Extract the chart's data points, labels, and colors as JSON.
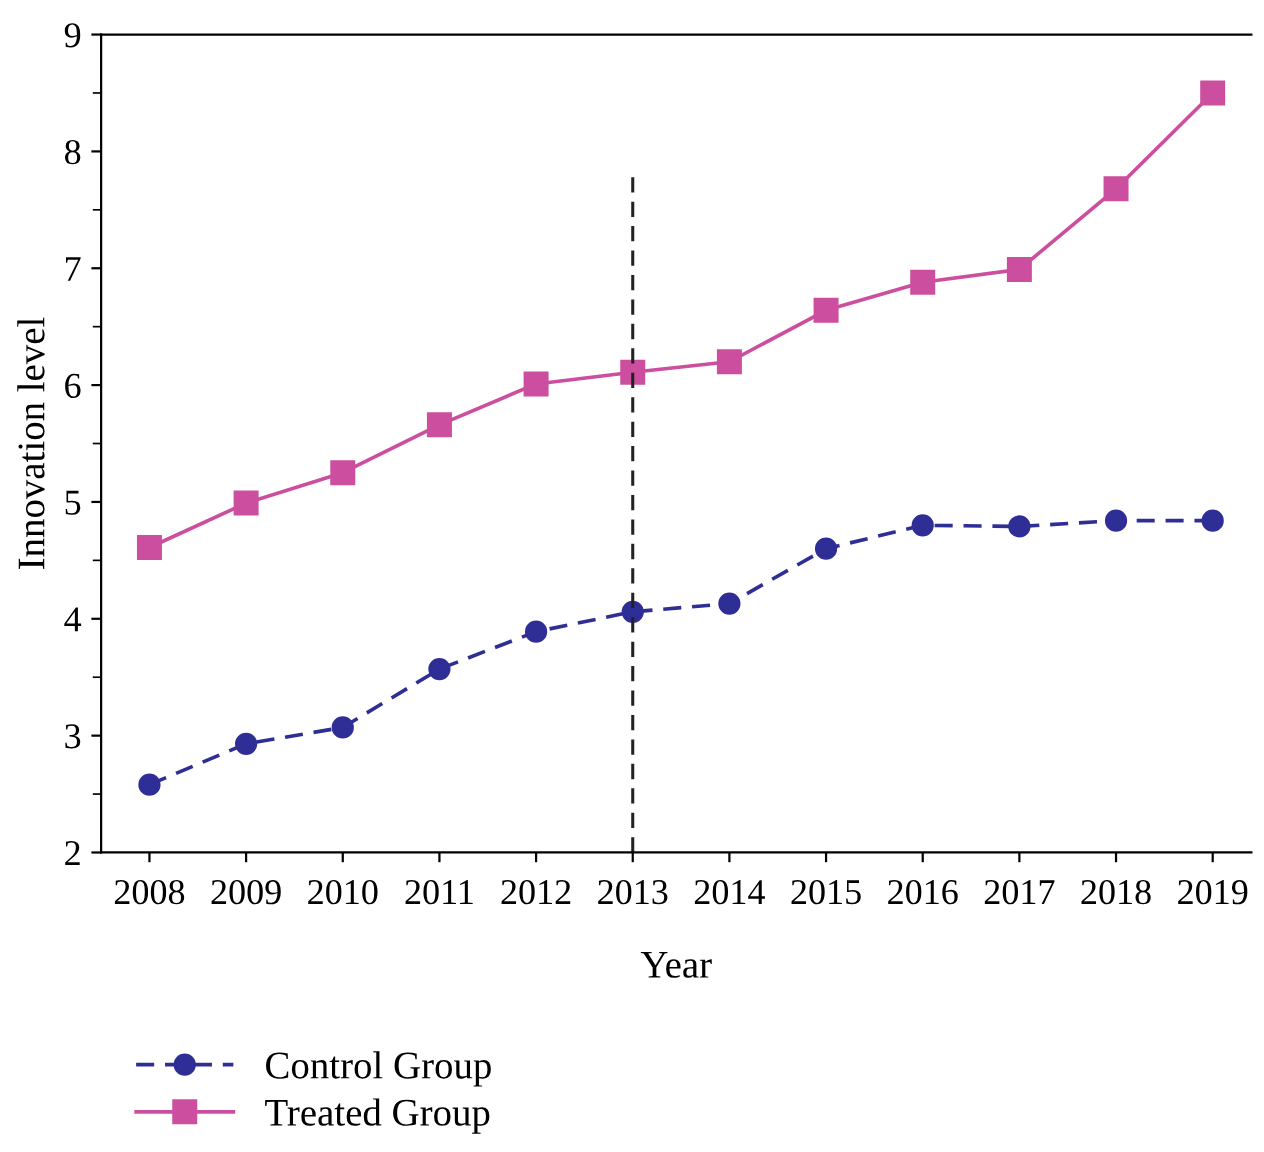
{
  "chart_data": {
    "type": "line",
    "xlabel": "Year",
    "ylabel": "Innovation level",
    "categories": [
      "2008",
      "2009",
      "2010",
      "2011",
      "2012",
      "2013",
      "2014",
      "2015",
      "2016",
      "2017",
      "2018",
      "2019"
    ],
    "series": [
      {
        "name": "Control Group",
        "color": "#2e2e96",
        "marker": "circle",
        "line_style": "dashed",
        "values": [
          2.58,
          2.93,
          3.07,
          3.57,
          3.89,
          4.06,
          4.13,
          4.6,
          4.8,
          4.79,
          4.84,
          4.84
        ]
      },
      {
        "name": "Treated Group",
        "color": "#cc4f9f",
        "marker": "square",
        "line_style": "solid",
        "values": [
          4.61,
          4.99,
          5.25,
          5.66,
          6.01,
          6.11,
          6.2,
          6.64,
          6.88,
          6.99,
          7.68,
          8.5
        ]
      }
    ],
    "ylim": [
      2,
      9
    ],
    "yticks": [
      2,
      3,
      4,
      5,
      6,
      7,
      8,
      9
    ],
    "ref_lines": [
      {
        "axis": "x",
        "value": "2013",
        "color": "#222222",
        "line_style": "dashed"
      }
    ],
    "legend": "bottom left",
    "grid": false
  }
}
